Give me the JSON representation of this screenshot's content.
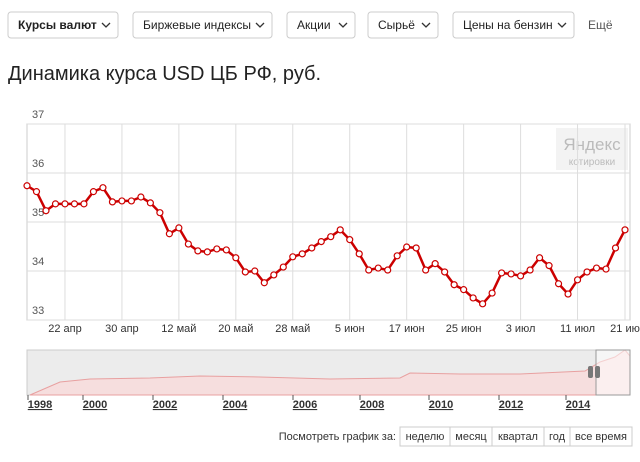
{
  "tabs": [
    "Курсы валют",
    "Биржевые индексы",
    "Акции",
    "Сырьё",
    "Цены на бензин"
  ],
  "more": "Ещё",
  "watermark": {
    "brand": "Яндекс",
    "sub": "котировки"
  },
  "chart_data": {
    "type": "line",
    "title": "Динамика курса USD ЦБ РФ, руб.",
    "categories": [
      null,
      null,
      null,
      null,
      "22 апр",
      null,
      null,
      null,
      null,
      null,
      "30 апр",
      null,
      null,
      null,
      null,
      null,
      "12 май",
      null,
      null,
      null,
      null,
      null,
      "20 май",
      null,
      null,
      null,
      null,
      null,
      "28 май",
      null,
      null,
      null,
      null,
      null,
      "5 июн",
      null,
      null,
      null,
      null,
      null,
      "17 июн",
      null,
      null,
      null,
      null,
      null,
      "25 июн",
      null,
      null,
      null,
      null,
      null,
      "3 июл",
      null,
      null,
      null,
      null,
      null,
      "11 июл",
      null,
      null,
      null,
      null,
      "21 ию"
    ],
    "series": [
      {
        "name": "USD",
        "color": "#cc0000",
        "values": [
          35.74,
          35.62,
          35.23,
          35.37,
          35.37,
          35.37,
          35.37,
          35.62,
          35.7,
          35.41,
          35.43,
          35.43,
          35.51,
          35.39,
          35.19,
          34.76,
          34.88,
          34.55,
          34.41,
          34.39,
          34.45,
          34.43,
          34.27,
          33.98,
          34.0,
          33.76,
          33.92,
          34.08,
          34.29,
          34.35,
          34.47,
          34.6,
          34.7,
          34.84,
          34.64,
          34.35,
          34.02,
          34.06,
          34.02,
          34.31,
          34.49,
          34.47,
          34.02,
          34.15,
          33.98,
          33.72,
          33.62,
          33.45,
          33.33,
          33.55,
          33.96,
          33.94,
          33.9,
          34.02,
          34.27,
          34.11,
          33.74,
          33.53,
          33.82,
          33.98,
          34.06,
          34.04,
          34.47,
          34.84
        ]
      }
    ],
    "ylim": [
      33,
      37
    ],
    "yticks": [
      33,
      34,
      35,
      36,
      37
    ],
    "grid": true
  },
  "navigator": {
    "labels": [
      "1998",
      "2000",
      "2002",
      "2004",
      "2006",
      "2008",
      "2010",
      "2012",
      "2014"
    ]
  },
  "period": {
    "prompt": "Посмотреть график за:",
    "buttons": [
      "неделю",
      "месяц",
      "квартал",
      "год",
      "все время"
    ]
  }
}
